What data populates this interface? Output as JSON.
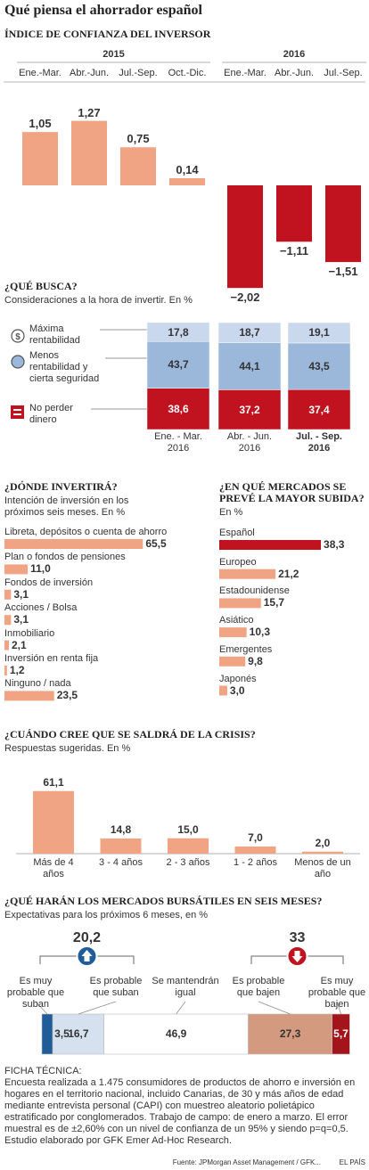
{
  "title": "Qué piensa el ahorrador español",
  "chart_data": [
    {
      "type": "grouped_bar",
      "title": "ÍNDICE DE CONFIANZA DEL INVERSOR",
      "groups": [
        {
          "name": "2015",
          "categories": [
            "Ene.-Mar.",
            "Abr.-Jun.",
            "Jul.-Sep.",
            "Oct.-Dic."
          ],
          "values": [
            1.05,
            1.27,
            0.75,
            0.14
          ],
          "value_labels": [
            "1,05",
            "1,27",
            "0,75",
            "0,14"
          ]
        },
        {
          "name": "2016",
          "categories": [
            "Ene.-Mar.",
            "Abr.-Jun.",
            "Jul.-Sep."
          ],
          "values": [
            -2.02,
            -1.11,
            -1.51
          ],
          "value_labels": [
            "−2,02",
            "−1,11",
            "−1,51"
          ]
        }
      ],
      "ylim": [
        -2.4,
        1.6
      ],
      "color_positive": "#f0a484",
      "color_negative": "#c1121f"
    },
    {
      "type": "stacked_bar",
      "title": "¿QUÉ BUSCA?",
      "subtitle": "Consideraciones a la hora de invertir. En %",
      "categories": [
        "Ene. - Mar.",
        "Abr. - Jun.",
        "Jul. - Sep."
      ],
      "category_years": [
        "2016",
        "2016",
        "2016"
      ],
      "highlight": 2,
      "ylim": [
        0,
        100
      ],
      "series": [
        {
          "name": "Máxima rentabilidad",
          "color": "#c9d8ec",
          "values": [
            17.8,
            18.7,
            19.1
          ],
          "value_labels": [
            "17,8",
            "18,7",
            "19,1"
          ]
        },
        {
          "name": "Menos rentabilidad y cierta seguridad",
          "color": "#9bb7da",
          "values": [
            43.7,
            44.1,
            43.5
          ],
          "value_labels": [
            "43,7",
            "44,1",
            "43,5"
          ]
        },
        {
          "name": "No perder dinero",
          "color": "#c1121f",
          "values": [
            38.6,
            37.2,
            37.4
          ],
          "value_labels": [
            "38,6",
            "37,2",
            "37,4"
          ]
        }
      ]
    },
    {
      "type": "hbar",
      "title": "¿DÓNDE INVERTIRÁ?",
      "subtitle": "Intención de inversión en los próximos seis meses. En %",
      "categories": [
        "Libreta, depósitos o cuenta de ahorro",
        "Plan o fondos de pensiones",
        "Fondos de inversión",
        "Acciones / Bolsa",
        "Inmobiliario",
        "Inversión en renta fija",
        "Ninguno / nada"
      ],
      "values": [
        65.5,
        11.0,
        3.1,
        3.1,
        2.1,
        1.2,
        23.5
      ],
      "value_labels": [
        "65,5",
        "11,0",
        "3,1",
        "3,1",
        "2,1",
        "1,2",
        "23,5"
      ],
      "colors": [
        "#f0a484",
        "#f0a484",
        "#f0a484",
        "#f0a484",
        "#f0a484",
        "#f0a484",
        "#f0a484"
      ],
      "xlim": [
        0,
        70
      ]
    },
    {
      "type": "hbar",
      "title": "¿EN QUÉ MERCADOS SE PREVÉ LA MAYOR SUBIDA?",
      "subtitle": "En %",
      "categories": [
        "Español",
        "Europeo",
        "Estadounidense",
        "Asiático",
        "Emergentes",
        "Japonés"
      ],
      "values": [
        38.3,
        21.2,
        15.7,
        10.3,
        9.8,
        3.0
      ],
      "value_labels": [
        "38,3",
        "21,2",
        "15,7",
        "10,3",
        "9,8",
        "3,0"
      ],
      "colors": [
        "#c1121f",
        "#f0a484",
        "#f0a484",
        "#f0a484",
        "#f0a484",
        "#f0a484"
      ],
      "xlim": [
        0,
        45
      ]
    },
    {
      "type": "bar",
      "title": "¿CUÁNDO CREE QUE SE SALDRÁ DE LA CRISIS?",
      "subtitle": "Respuestas sugeridas. En %",
      "categories": [
        "Más de 4 años",
        "3 - 4 años",
        "2 - 3 años",
        "1 - 2 años",
        "Menos de un año"
      ],
      "values": [
        61.1,
        14.8,
        15.0,
        7.0,
        2.0
      ],
      "value_labels": [
        "61,1",
        "14,8",
        "15,0",
        "7,0",
        "2,0"
      ],
      "color": "#f0a484",
      "ylim": [
        0,
        70
      ]
    },
    {
      "type": "stacked_hbar",
      "title": "¿QUÉ HARÁN LOS MERCADOS BURSÁTILES EN SEIS MESES?",
      "subtitle": "Expectativas para los próximos 6 meses, en %",
      "xlim": [
        0,
        100
      ],
      "series": [
        {
          "name": "Es muy probable que suban",
          "color": "#1f5c99",
          "values": [
            3.5
          ],
          "value_labels": [
            "3,5"
          ]
        },
        {
          "name": "Es probable que suban",
          "color": "#d5e1ef",
          "values": [
            16.7
          ],
          "value_labels": [
            "16,7"
          ]
        },
        {
          "name": "Se mantendrán igual",
          "color": "#ffffff",
          "values": [
            46.9
          ],
          "value_labels": [
            "46,9"
          ]
        },
        {
          "name": "Es probable que bajen",
          "color": "#d49a7f",
          "values": [
            27.3
          ],
          "value_labels": [
            "27,3"
          ]
        },
        {
          "name": "Es muy probable que bajen",
          "color": "#a3141b",
          "values": [
            5.7
          ],
          "value_labels": [
            "5,7"
          ]
        }
      ],
      "up_total": {
        "value": 20.2,
        "label": "20,2"
      },
      "down_total": 33
    }
  ],
  "footnote": {
    "title": "FICHA TÉCNICA:",
    "text": "Encuesta realizada a 1.475 consumidores de productos de ahorro e inversión en hogares en el territorio nacional, incluido Canarias, de 30 y más años de edad mediante entrevista personal (CAPI) con muestreo aleatorio polietápico estratificado por conglomerados. Trabajo de campo: de enero a marzo. El error muestral es de  ±2,60% con un nivel de confianza de un 95% y siendo p=q=0,5. Estudio elaborado por GFK Emer Ad-Hoc Research."
  },
  "source": "Fuente: JPMorgan Asset Management / GFK...",
  "publisher": "EL PAÍS"
}
